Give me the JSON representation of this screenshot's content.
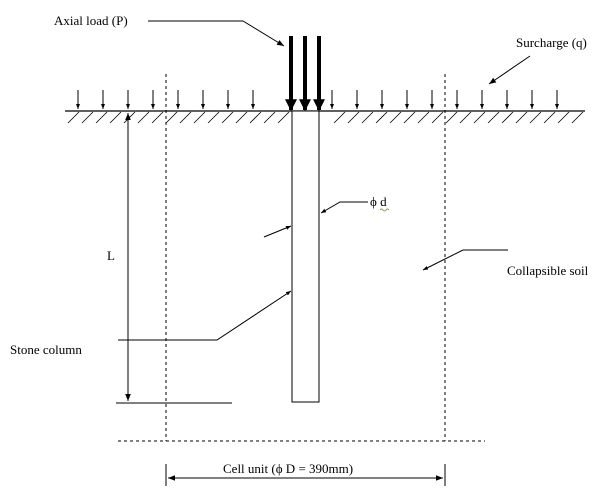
{
  "labels": {
    "axial_load": "Axial load (P)",
    "surcharge": "Surcharge (q)",
    "pile_diameter": "ϕ d",
    "length": "L",
    "collapsible_soil": "Collapsible soil",
    "stone_column": "Stone column",
    "cell_unit": "Cell unit (ϕ D = 390mm)"
  },
  "colors": {
    "line": "#000000",
    "background": "#ffffff",
    "squiggle": "#7aa05a"
  }
}
